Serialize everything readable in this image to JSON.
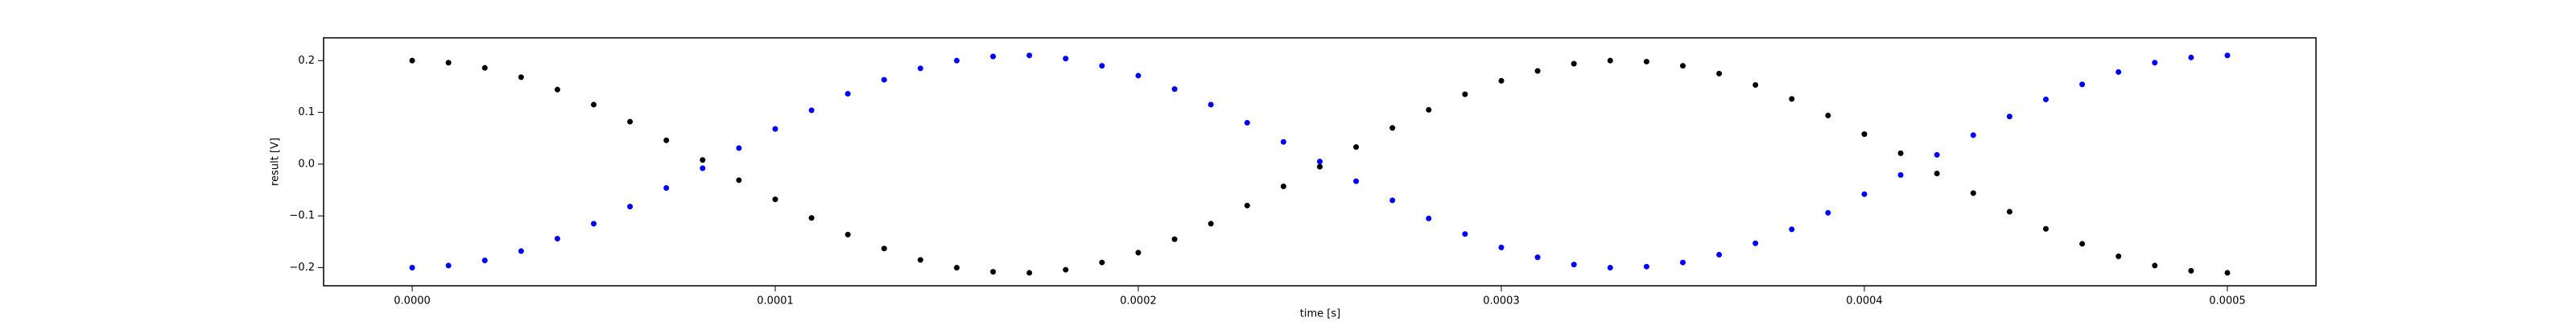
{
  "chart_data": {
    "type": "scatter",
    "xlabel": "time [s]",
    "ylabel": "result [V]",
    "x": [
      0,
      1e-05,
      2e-05,
      3e-05,
      4e-05,
      5e-05,
      6e-05,
      7e-05,
      8e-05,
      9e-05,
      0.0001,
      0.00011,
      0.00012,
      0.00013,
      0.00014,
      0.00015,
      0.00016,
      0.00017,
      0.00018,
      0.00019,
      0.0002,
      0.00021,
      0.00022,
      0.00023,
      0.00024,
      0.00025,
      0.00026,
      0.00027,
      0.00028,
      0.00029,
      0.0003,
      0.00031,
      0.00032,
      0.00033,
      0.00034,
      0.00035,
      0.00036,
      0.00037,
      0.00038,
      0.00039,
      0.0004,
      0.00041,
      0.00042,
      0.00043,
      0.00044,
      0.00045,
      0.00046,
      0.00047,
      0.00048,
      0.00049,
      0.0005
    ],
    "series": [
      {
        "color": "#000000",
        "values": [
          0.2,
          0.196,
          0.186,
          0.168,
          0.144,
          0.115,
          0.082,
          0.046,
          0.008,
          -0.031,
          -0.068,
          -0.104,
          -0.136,
          -0.163,
          -0.185,
          -0.2,
          -0.208,
          -0.21,
          -0.204,
          -0.19,
          -0.171,
          -0.145,
          -0.115,
          -0.08,
          -0.043,
          -0.005,
          0.033,
          0.07,
          0.105,
          0.135,
          0.161,
          0.18,
          0.194,
          0.2,
          0.198,
          0.19,
          0.175,
          0.153,
          0.126,
          0.094,
          0.058,
          0.021,
          -0.018,
          -0.056,
          -0.092,
          -0.125,
          -0.154,
          -0.178,
          -0.196,
          -0.206,
          -0.21
        ]
      },
      {
        "color": "#0000ff",
        "values": [
          -0.2,
          -0.196,
          -0.186,
          -0.168,
          -0.144,
          -0.115,
          -0.082,
          -0.046,
          -0.008,
          0.031,
          0.068,
          0.104,
          0.136,
          0.163,
          0.185,
          0.2,
          0.208,
          0.21,
          0.204,
          0.19,
          0.171,
          0.145,
          0.115,
          0.08,
          0.043,
          0.005,
          -0.033,
          -0.07,
          -0.105,
          -0.135,
          -0.161,
          -0.18,
          -0.194,
          -0.2,
          -0.198,
          -0.19,
          -0.175,
          -0.153,
          -0.126,
          -0.094,
          -0.058,
          -0.021,
          0.018,
          0.056,
          0.092,
          0.125,
          0.154,
          0.178,
          0.196,
          0.206,
          0.21
        ]
      }
    ],
    "xlim": [
      -2.44e-05,
      0.0005244
    ],
    "xticks": [
      {
        "value": 0,
        "label": "0.0000"
      },
      {
        "value": 0.0001,
        "label": "0.0001"
      },
      {
        "value": 0.0002,
        "label": "0.0002"
      },
      {
        "value": 0.0003,
        "label": "0.0003"
      },
      {
        "value": 0.0004,
        "label": "0.0004"
      },
      {
        "value": 0.0005,
        "label": "0.0005"
      }
    ],
    "ylim": [
      -0.235,
      0.244
    ],
    "yticks": [
      {
        "value": -0.2,
        "label": "−0.2"
      },
      {
        "value": -0.1,
        "label": "−0.1"
      },
      {
        "value": 0,
        "label": "0.0"
      },
      {
        "value": 0.1,
        "label": "0.1"
      },
      {
        "value": 0.2,
        "label": "0.2"
      }
    ],
    "grid": false
  }
}
